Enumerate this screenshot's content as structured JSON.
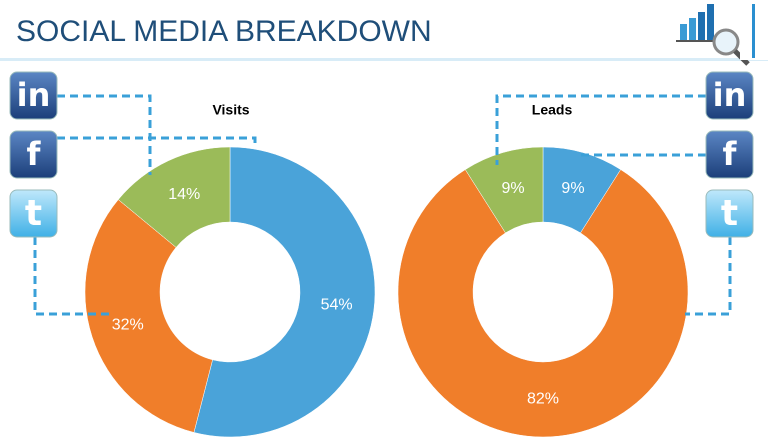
{
  "title": "SOCIAL MEDIA BREAKDOWN",
  "chart_data": [
    {
      "type": "pie",
      "title": "Visits",
      "categories": [
        "f",
        "t",
        "in"
      ],
      "values": [
        54,
        32,
        14
      ],
      "value_labels": [
        "54%",
        "32%",
        "14%"
      ],
      "colors": [
        "#4aa3d9",
        "#f07e2a",
        "#9bbb59"
      ]
    },
    {
      "type": "pie",
      "title": "Leads",
      "categories": [
        "f",
        "t",
        "in"
      ],
      "values": [
        9,
        82,
        9
      ],
      "value_labels": [
        "9%",
        "82%",
        "9%"
      ],
      "colors": [
        "#4aa3d9",
        "#f07e2a",
        "#9bbb59"
      ]
    }
  ]
}
